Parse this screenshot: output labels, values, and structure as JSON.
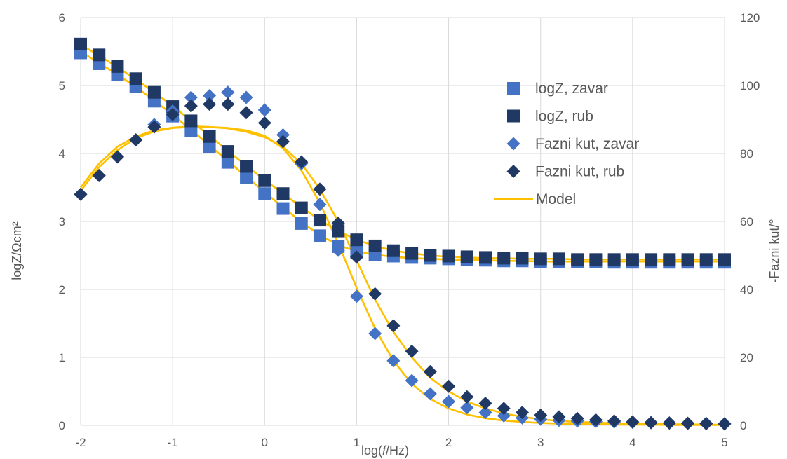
{
  "chart_data": {
    "type": "scatter",
    "title": "",
    "xlabel_parts": [
      "log(",
      "f",
      "/Hz)"
    ],
    "ylabel": "logZ/Ωcm²",
    "y2label": "-Fazni kut/°",
    "xlim": [
      -2,
      5
    ],
    "ylim": [
      0,
      6
    ],
    "y2lim": [
      0,
      120
    ],
    "x_ticks": [
      "-2",
      "-1",
      "0",
      "1",
      "2",
      "3",
      "4",
      "5"
    ],
    "y_ticks": [
      "0",
      "1",
      "2",
      "3",
      "4",
      "5",
      "6"
    ],
    "y2_ticks": [
      "0",
      "20",
      "40",
      "60",
      "80",
      "100",
      "120"
    ],
    "legend_position": "right",
    "grid": "horizontal",
    "x": [
      -2.0,
      -1.8,
      -1.6,
      -1.4,
      -1.2,
      -1.0,
      -0.8,
      -0.6,
      -0.4,
      -0.2,
      0.0,
      0.2,
      0.4,
      0.6,
      0.8,
      1.0,
      1.2,
      1.4,
      1.6,
      1.8,
      2.0,
      2.2,
      2.4,
      2.6,
      2.8,
      3.0,
      3.2,
      3.4,
      3.6,
      3.8,
      4.0,
      4.2,
      4.4,
      4.6,
      4.8,
      5.0
    ],
    "series": [
      {
        "name": "logZ, zavar",
        "marker": "square",
        "axis": "left",
        "color": "#4472C4",
        "y": [
          5.48,
          5.32,
          5.16,
          4.98,
          4.77,
          4.55,
          4.34,
          4.1,
          3.87,
          3.64,
          3.41,
          3.19,
          2.97,
          2.79,
          2.63,
          2.55,
          2.51,
          2.49,
          2.47,
          2.46,
          2.45,
          2.44,
          2.43,
          2.42,
          2.42,
          2.41,
          2.41,
          2.41,
          2.41,
          2.4,
          2.4,
          2.4,
          2.4,
          2.4,
          2.4,
          2.4
        ]
      },
      {
        "name": "logZ, rub",
        "marker": "square",
        "axis": "left",
        "color": "#203864",
        "y": [
          5.61,
          5.45,
          5.28,
          5.1,
          4.9,
          4.69,
          4.48,
          4.25,
          4.03,
          3.81,
          3.6,
          3.41,
          3.2,
          3.02,
          2.86,
          2.73,
          2.64,
          2.57,
          2.53,
          2.5,
          2.49,
          2.48,
          2.47,
          2.46,
          2.46,
          2.45,
          2.45,
          2.44,
          2.44,
          2.44,
          2.44,
          2.44,
          2.44,
          2.44,
          2.44,
          2.44
        ]
      },
      {
        "name": "Fazni kut, zavar",
        "marker": "diamond",
        "axis": "right",
        "color": "#4472C4",
        "y": [
          68,
          73.5,
          79,
          84,
          88.5,
          92.5,
          96.5,
          97,
          98,
          96.5,
          92.8,
          85.5,
          77,
          65,
          51.5,
          38,
          27,
          19,
          13.2,
          9.3,
          7,
          5.2,
          3.8,
          2.8,
          2.2,
          1.8,
          1.5,
          1.3,
          1.1,
          1,
          0.9,
          0.8,
          0.7,
          0.6,
          0.6,
          0.5
        ]
      },
      {
        "name": "Fazni kut, rub",
        "marker": "diamond",
        "axis": "right",
        "color": "#203864",
        "y": [
          68,
          73.5,
          79,
          84,
          87.8,
          91.5,
          94,
          94.5,
          94.5,
          92,
          89,
          83.5,
          77.5,
          69.5,
          59.5,
          49.5,
          38.7,
          29.3,
          21.8,
          15.8,
          11.5,
          8.4,
          6.5,
          5,
          3.8,
          3,
          2.5,
          2,
          1.6,
          1.3,
          1,
          0.8,
          0.7,
          0.6,
          0.5,
          0.4
        ]
      },
      {
        "name": "Model",
        "marker": "line",
        "axis": "mixed",
        "color": "#FFC000"
      }
    ],
    "model_curves": [
      {
        "axis": "left",
        "x": [
          -2.0,
          -1.8,
          -1.6,
          -1.4,
          -1.2,
          -1.0,
          -0.8,
          -0.6,
          -0.4,
          -0.2,
          0.0,
          0.2,
          0.4,
          0.6,
          0.8,
          1.0,
          1.2,
          1.4,
          1.6,
          1.8,
          2.0,
          2.2,
          2.4,
          2.6,
          2.8,
          3.0,
          3.2,
          3.4,
          3.6,
          3.8,
          4.0,
          4.2,
          4.4,
          4.6,
          4.8,
          5.0
        ],
        "y": [
          5.5,
          5.33,
          5.16,
          4.98,
          4.78,
          4.57,
          4.35,
          4.12,
          3.89,
          3.66,
          3.43,
          3.21,
          2.99,
          2.8,
          2.65,
          2.56,
          2.51,
          2.48,
          2.46,
          2.45,
          2.44,
          2.43,
          2.43,
          2.42,
          2.42,
          2.41,
          2.41,
          2.41,
          2.41,
          2.41,
          2.41,
          2.41,
          2.41,
          2.41,
          2.41,
          2.41
        ]
      },
      {
        "axis": "left",
        "x": [
          -2.0,
          -1.8,
          -1.6,
          -1.4,
          -1.2,
          -1.0,
          -0.8,
          -0.6,
          -0.4,
          -0.2,
          0.0,
          0.2,
          0.4,
          0.6,
          0.8,
          1.0,
          1.2,
          1.4,
          1.6,
          1.8,
          2.0,
          2.2,
          2.4,
          2.6,
          2.8,
          3.0,
          3.2,
          3.4,
          3.6,
          3.8,
          4.0,
          4.2,
          4.4,
          4.6,
          4.8,
          5.0
        ],
        "y": [
          5.6,
          5.44,
          5.27,
          5.09,
          4.9,
          4.7,
          4.48,
          4.26,
          4.04,
          3.82,
          3.61,
          3.41,
          3.21,
          3.02,
          2.86,
          2.73,
          2.64,
          2.57,
          2.53,
          2.5,
          2.48,
          2.47,
          2.46,
          2.46,
          2.45,
          2.45,
          2.45,
          2.44,
          2.44,
          2.44,
          2.44,
          2.44,
          2.44,
          2.44,
          2.44,
          2.44
        ]
      },
      {
        "axis": "right",
        "x": [
          -2.0,
          -1.8,
          -1.6,
          -1.4,
          -1.2,
          -1.0,
          -0.8,
          -0.6,
          -0.4,
          -0.2,
          0.0,
          0.2,
          0.4,
          0.6,
          0.8,
          1.0,
          1.2,
          1.4,
          1.6,
          1.8,
          2.0,
          2.2,
          2.4,
          2.6,
          2.8,
          3.0,
          3.2,
          3.4,
          3.6,
          3.8,
          4.0,
          4.2,
          4.4,
          4.6,
          4.8,
          5.0
        ],
        "y": [
          69,
          76,
          81,
          84.5,
          86.5,
          87.5,
          87.8,
          87.8,
          87.5,
          86.8,
          85.2,
          81.5,
          75,
          65.5,
          53.5,
          40.5,
          28.5,
          19,
          12.2,
          7.8,
          5,
          3.2,
          2.1,
          1.4,
          1,
          0.7,
          0.5,
          0.4,
          0.3,
          0.2,
          0.2,
          0.2,
          0.1,
          0.1,
          0.1,
          0.1
        ]
      },
      {
        "axis": "right",
        "x": [
          -2.0,
          -1.8,
          -1.6,
          -1.4,
          -1.2,
          -1.0,
          -0.8,
          -0.6,
          -0.4,
          -0.2,
          0.0,
          0.2,
          0.4,
          0.6,
          0.8,
          1.0,
          1.2,
          1.4,
          1.6,
          1.8,
          2.0,
          2.2,
          2.4,
          2.6,
          2.8,
          3.0,
          3.2,
          3.4,
          3.6,
          3.8,
          4.0,
          4.2,
          4.4,
          4.6,
          4.8,
          5.0
        ],
        "y": [
          70,
          77,
          82,
          85,
          86.8,
          87.6,
          88,
          87.8,
          87.4,
          86.4,
          84.8,
          82,
          77,
          69.5,
          60,
          48.5,
          37,
          27.5,
          20,
          14,
          10,
          7,
          5,
          3.5,
          2.5,
          1.8,
          1.3,
          1,
          0.8,
          0.6,
          0.5,
          0.4,
          0.3,
          0.3,
          0.2,
          0.2
        ]
      }
    ]
  }
}
